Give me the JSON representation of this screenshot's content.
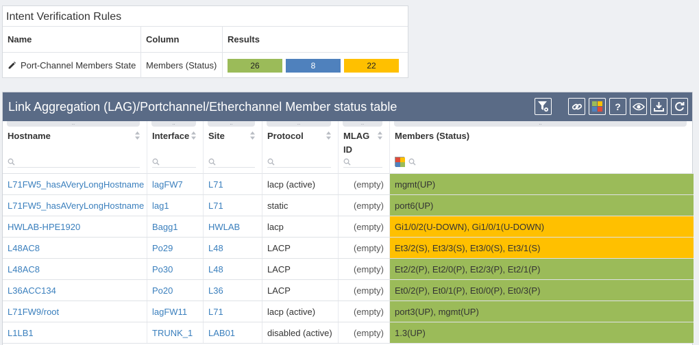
{
  "intent": {
    "title": "Intent Verification Rules",
    "headers": {
      "name": "Name",
      "column": "Column",
      "results": "Results"
    },
    "rule": {
      "name": "Port-Channel Members State",
      "column": "Members (Status)",
      "results": [
        {
          "value": "26",
          "color": "#9bbb59"
        },
        {
          "value": "8",
          "color": "#4f81bd"
        },
        {
          "value": "22",
          "color": "#ffc000"
        }
      ]
    }
  },
  "lag": {
    "title": "Link Aggregation (LAG)/Portchannel/Etherchannel Member status table",
    "toolbar_icons": [
      "filter-gear-icon",
      "link-icon",
      "color-grid-icon",
      "help-icon",
      "eye-icon",
      "download-icon",
      "refresh-icon"
    ],
    "help_label": "?",
    "grip": "..",
    "columns": [
      {
        "label": "Hostname"
      },
      {
        "label": "Interface"
      },
      {
        "label": "Site"
      },
      {
        "label": "Protocol"
      },
      {
        "label": "MLAG ID"
      },
      {
        "label": "Members (Status)"
      }
    ],
    "rows": [
      {
        "hostname": "L71FW5_hasAVeryLongHostname",
        "interface": "lagFW7",
        "site": "L71",
        "protocol": "lacp (active)",
        "mlag": "(empty)",
        "members": "mgmt(UP)",
        "status": "green"
      },
      {
        "hostname": "L71FW5_hasAVeryLongHostname",
        "interface": "lag1",
        "site": "L71",
        "protocol": "static",
        "mlag": "(empty)",
        "members": "port6(UP)",
        "status": "green"
      },
      {
        "hostname": "HWLAB-HPE1920",
        "interface": "Bagg1",
        "site": "HWLAB",
        "protocol": "lacp",
        "mlag": "(empty)",
        "members": "Gi1/0/2(U-DOWN), Gi1/0/1(U-DOWN)",
        "status": "amber"
      },
      {
        "hostname": "L48AC8",
        "interface": "Po29",
        "site": "L48",
        "protocol": "LACP",
        "mlag": "(empty)",
        "members": "Et3/2(S), Et3/3(S), Et3/0(S), Et3/1(S)",
        "status": "amber"
      },
      {
        "hostname": "L48AC8",
        "interface": "Po30",
        "site": "L48",
        "protocol": "LACP",
        "mlag": "(empty)",
        "members": "Et2/2(P), Et2/0(P), Et2/3(P), Et2/1(P)",
        "status": "green"
      },
      {
        "hostname": "L36ACC134",
        "interface": "Po20",
        "site": "L36",
        "protocol": "LACP",
        "mlag": "(empty)",
        "members": "Et0/2(P), Et0/1(P), Et0/0(P), Et0/3(P)",
        "status": "green"
      },
      {
        "hostname": "L71FW9/root",
        "interface": "lagFW11",
        "site": "L71",
        "protocol": "lacp (active)",
        "mlag": "(empty)",
        "members": "port3(UP), mgmt(UP)",
        "status": "green"
      },
      {
        "hostname": "L1LB1",
        "interface": "TRUNK_1",
        "site": "LAB01",
        "protocol": "disabled (active)",
        "mlag": "(empty)",
        "members": "1.3(UP)",
        "status": "green"
      }
    ]
  }
}
